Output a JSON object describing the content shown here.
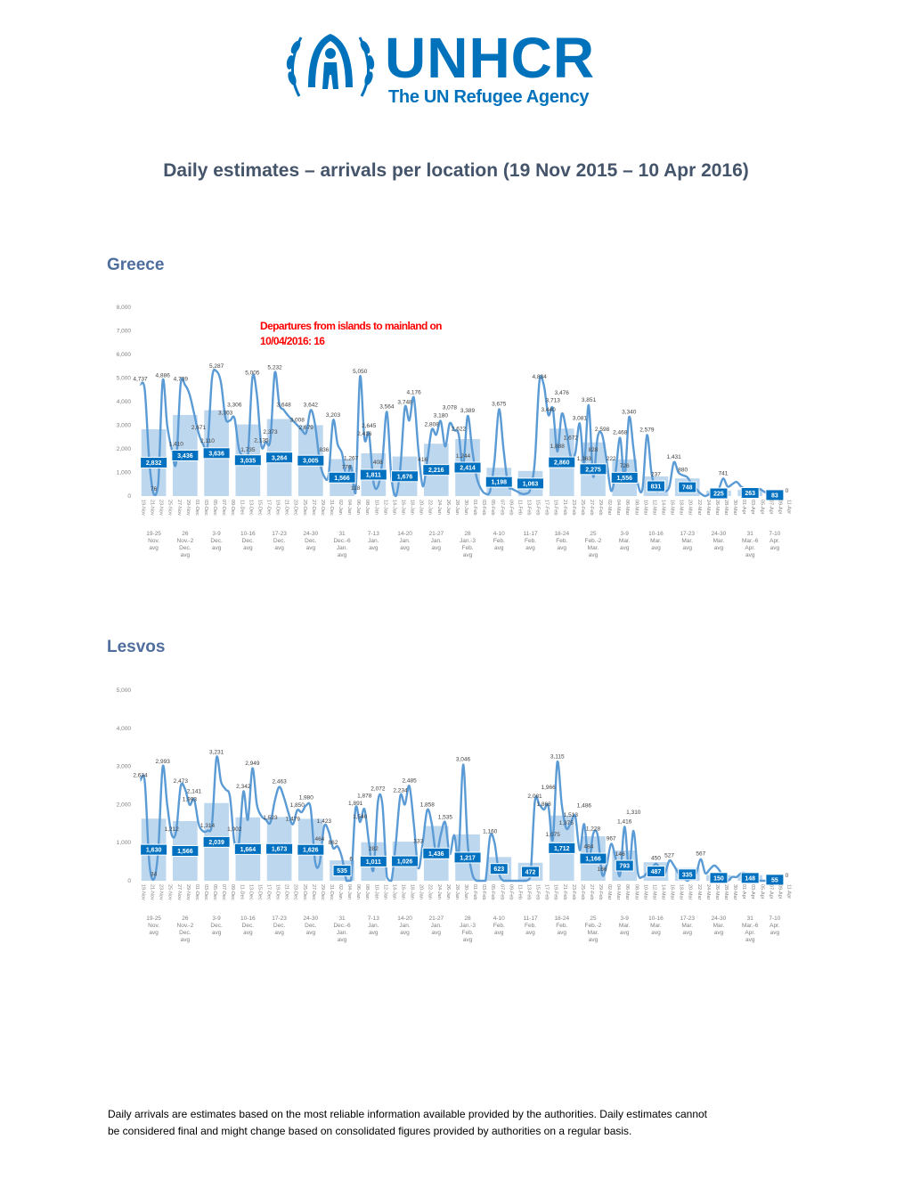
{
  "logo": {
    "word": "UNHCR",
    "tagline": "The UN Refugee Agency",
    "color": "#0072BC"
  },
  "title": "Daily estimates – arrivals per location (19 Nov 2015 – 10 Apr 2016)",
  "footnote": {
    "line1": "Daily arrivals are estimates based on the most reliable information available provided by the authorities. Daily estimates cannot",
    "line2": "be considered final and might change based on consolidated figures provided by authorities on a regular basis."
  },
  "colors": {
    "line": "#5B9BD5",
    "bar": "#BDD7EE",
    "bar_label_bg": "#0070C0",
    "annotation": "#FF0000"
  },
  "chart_data": [
    {
      "section_title": "Greece",
      "type": "bar+line",
      "ylim": [
        0,
        8000
      ],
      "yticks": [
        0,
        1000,
        2000,
        3000,
        4000,
        5000,
        6000,
        7000,
        8000
      ],
      "annotation": {
        "line1": "Departures from islands to mainland on",
        "line2": "10/04/2016: 16"
      },
      "x_tick_labels": [
        "19-Nov",
        "21-Nov",
        "23-Nov",
        "25-Nov",
        "27-Nov",
        "29-Nov",
        "01-Dec",
        "03-Dec",
        "05-Dec",
        "07-Dec",
        "09-Dec",
        "11-Dec",
        "13-Dec",
        "15-Dec",
        "17-Dec",
        "19-Dec",
        "21-Dec",
        "23-Dec",
        "25-Dec",
        "27-Dec",
        "29-Dec",
        "31-Dec",
        "02-Jan",
        "04-Jan",
        "06-Jan",
        "08-Jan",
        "10-Jan",
        "12-Jan",
        "14-Jan",
        "16-Jan",
        "18-Jan",
        "20-Jan",
        "22-Jan",
        "24-Jan",
        "26-Jan",
        "28-Jan",
        "30-Jan",
        "01-Feb",
        "03-Feb",
        "05-Feb",
        "07-Feb",
        "09-Feb",
        "11-Feb",
        "13-Feb",
        "15-Feb",
        "17-Feb",
        "19-Feb",
        "21-Feb",
        "23-Feb",
        "25-Feb",
        "27-Feb",
        "29-Feb",
        "02-Mar",
        "04-Mar",
        "06-Mar",
        "08-Mar",
        "10-Mar",
        "12-Mar",
        "14-Mar",
        "16-Mar",
        "18-Mar",
        "20-Mar",
        "22-Mar",
        "24-Mar",
        "26-Mar",
        "28-Mar",
        "30-Mar",
        "01-Apr",
        "03-Apr",
        "05-Apr",
        "07-Apr",
        "09-Apr",
        "11-Apr"
      ],
      "weeks": [
        "19-25 Nov. avg",
        "26 Nov.-2 Dec. avg",
        "3-9 Dec. avg",
        "10-16 Dec. avg",
        "17-23 Dec. avg",
        "24-30 Dec. avg",
        "31 Dec.-6 Jan. avg",
        "7-13 Jan. avg",
        "14-20 Jan. avg",
        "21-27 Jan. avg",
        "28 Jan.-3 Feb. avg",
        "4-10 Feb. avg",
        "11-17 Feb. avg",
        "18-24 Feb. avg",
        "25 Feb.-2 Mar. avg",
        "3-9 Mar. avg",
        "10-16 Mar. avg",
        "17-23 Mar. avg",
        "24-30 Mar. avg",
        "31 Mar.-6 Apr. avg",
        "7-10 Apr. avg"
      ],
      "weekly_avg": [
        2832,
        3436,
        3636,
        3035,
        3264,
        3005,
        1566,
        1811,
        1676,
        2216,
        2414,
        1198,
        1063,
        2860,
        2275,
        1556,
        831,
        748,
        225,
        263,
        83
      ],
      "daily": [
        4737,
        4500,
        1500,
        76,
        500,
        4886,
        3000,
        2000,
        1410,
        4739,
        4700,
        4300,
        3500,
        2671,
        2200,
        2110,
        5000,
        5287,
        4800,
        3303,
        3200,
        3306,
        2000,
        1700,
        1735,
        5005,
        4300,
        2135,
        2300,
        2373,
        5232,
        3900,
        3648,
        3400,
        3200,
        3008,
        2800,
        2679,
        3642,
        3000,
        1500,
        836,
        900,
        3203,
        2200,
        1800,
        776,
        1267,
        118,
        5050,
        2416,
        2645,
        600,
        408,
        1500,
        3564,
        800,
        0,
        1200,
        3748,
        3200,
        4176,
        2000,
        416,
        1500,
        2808,
        2600,
        3180,
        2100,
        3078,
        2800,
        2622,
        1244,
        3389,
        2000,
        800,
        300,
        100,
        200,
        1500,
        3675,
        2000,
        500,
        300,
        200,
        100,
        100,
        300,
        1500,
        4834,
        4700,
        3440,
        3713,
        1888,
        3476,
        2800,
        1672,
        1800,
        3081,
        1363,
        3851,
        828,
        2500,
        2598,
        1500,
        222,
        1000,
        2468,
        726,
        3340,
        2000,
        500,
        300,
        2579,
        1000,
        237,
        300,
        200,
        400,
        1431,
        1000,
        880,
        800,
        500,
        300,
        100,
        0,
        100,
        200,
        300,
        741,
        400,
        500,
        600,
        400,
        300,
        200,
        100,
        300,
        200,
        100,
        100,
        100,
        0
      ]
    },
    {
      "section_title": "Lesvos",
      "type": "bar+line",
      "ylim": [
        0,
        5000
      ],
      "yticks": [
        0,
        1000,
        2000,
        3000,
        4000,
        5000
      ],
      "x_tick_labels": [
        "19-Nov",
        "21-Nov",
        "23-Nov",
        "25-Nov",
        "27-Nov",
        "29-Nov",
        "01-Dec",
        "03-Dec",
        "05-Dec",
        "07-Dec",
        "09-Dec",
        "11-Dec",
        "13-Dec",
        "15-Dec",
        "17-Dec",
        "19-Dec",
        "21-Dec",
        "23-Dec",
        "25-Dec",
        "27-Dec",
        "29-Dec",
        "31-Dec",
        "02-Jan",
        "04-Jan",
        "06-Jan",
        "08-Jan",
        "10-Jan",
        "12-Jan",
        "14-Jan",
        "16-Jan",
        "18-Jan",
        "20-Jan",
        "22-Jan",
        "24-Jan",
        "26-Jan",
        "28-Jan",
        "30-Jan",
        "01-Feb",
        "03-Feb",
        "05-Feb",
        "07-Feb",
        "09-Feb",
        "11-Feb",
        "13-Feb",
        "15-Feb",
        "17-Feb",
        "19-Feb",
        "21-Feb",
        "23-Feb",
        "25-Feb",
        "27-Feb",
        "29-Feb",
        "02-Mar",
        "04-Mar",
        "06-Mar",
        "08-Mar",
        "10-Mar",
        "12-Mar",
        "14-Mar",
        "16-Mar",
        "18-Mar",
        "20-Mar",
        "22-Mar",
        "24-Mar",
        "26-Mar",
        "28-Mar",
        "30-Mar",
        "01-Apr",
        "03-Apr",
        "05-Apr",
        "07-Apr",
        "09-Apr",
        "11-Apr"
      ],
      "weeks": [
        "19-25 Nov. avg",
        "26 Nov.-2 Dec. avg",
        "3-9 Dec. avg",
        "10-16 Dec. avg",
        "17-23 Dec. avg",
        "24-30 Dec. avg",
        "31 Dec.-6 Jan. avg",
        "7-13 Jan. avg",
        "14-20 Jan. avg",
        "21-27 Jan. avg",
        "28 Jan.-3 Feb. avg",
        "4-10 Feb. avg",
        "11-17 Feb. avg",
        "18-24 Feb. avg",
        "25 Feb.-2 Mar. avg",
        "3-9 Mar. avg",
        "10-16 Mar. avg",
        "17-23 Mar. avg",
        "24-30 Mar. avg",
        "31 Mar.-6 Apr. avg",
        "7-10 Apr. avg"
      ],
      "weekly_avg": [
        1630,
        1566,
        2039,
        1664,
        1673,
        1626,
        535,
        1011,
        1026,
        1436,
        1217,
        623,
        472,
        1712,
        1166,
        793,
        487,
        335,
        150,
        148,
        55
      ],
      "daily": [
        2634,
        2600,
        500,
        34,
        800,
        2993,
        2000,
        1212,
        1300,
        2473,
        2400,
        1993,
        2141,
        1500,
        1300,
        1314,
        1500,
        3231,
        2600,
        2400,
        2200,
        1002,
        1000,
        2342,
        1600,
        2949,
        2000,
        1700,
        1600,
        1523,
        2100,
        2463,
        2200,
        1800,
        1479,
        1850,
        1800,
        1980,
        1900,
        500,
        464,
        1423,
        1300,
        862,
        900,
        600,
        0,
        6,
        1891,
        1540,
        1878,
        1000,
        282,
        2072,
        2000,
        100,
        0,
        1000,
        2234,
        2000,
        2485,
        1500,
        333,
        1000,
        1858,
        1500,
        700,
        1200,
        1535,
        700,
        1200,
        700,
        3046,
        1000,
        200,
        0,
        0,
        0,
        1160,
        1000,
        200,
        0,
        0,
        0,
        0,
        0,
        0,
        100,
        2081,
        2000,
        1868,
        1966,
        1075,
        3115,
        2000,
        1375,
        1513,
        1700,
        800,
        1486,
        484,
        1228,
        1200,
        166,
        400,
        967,
        600,
        146,
        1416,
        300,
        1310,
        200,
        100,
        200,
        300,
        450,
        300,
        200,
        527,
        400,
        200,
        100,
        0,
        100,
        200,
        567,
        200,
        300,
        400,
        300,
        100,
        0,
        100,
        100,
        200,
        200,
        100,
        100,
        0,
        0,
        0,
        0,
        0,
        0
      ]
    }
  ]
}
